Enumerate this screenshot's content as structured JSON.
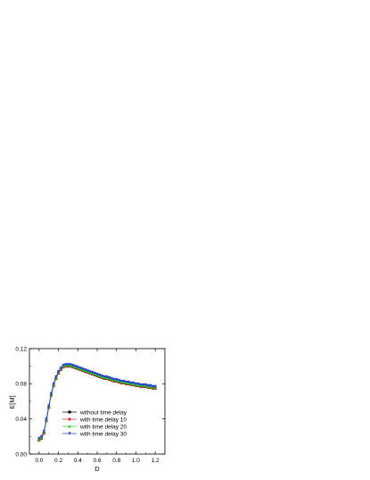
{
  "chart_data": {
    "type": "line",
    "title": "",
    "xlabel": "D",
    "ylabel": "E[M]",
    "xlim": [
      -0.1,
      1.3
    ],
    "ylim": [
      0.0,
      0.12
    ],
    "xticks": [
      "0.0",
      "0.2",
      "0.4",
      "0.6",
      "0.8",
      "1.0",
      "1.2"
    ],
    "xtick_values": [
      0.0,
      0.2,
      0.4,
      0.6,
      0.8,
      1.0,
      1.2
    ],
    "yticks": [
      "0.00",
      "0.04",
      "0.08",
      "0.12"
    ],
    "ytick_values": [
      0.0,
      0.04,
      0.08,
      0.12
    ],
    "grid": false,
    "legend_position": "center-left",
    "x": [
      0.0,
      0.025,
      0.05,
      0.075,
      0.1,
      0.125,
      0.15,
      0.175,
      0.2,
      0.225,
      0.25,
      0.275,
      0.3,
      0.325,
      0.35,
      0.375,
      0.4,
      0.425,
      0.45,
      0.475,
      0.5,
      0.525,
      0.55,
      0.575,
      0.6,
      0.625,
      0.65,
      0.675,
      0.7,
      0.725,
      0.75,
      0.775,
      0.8,
      0.825,
      0.85,
      0.875,
      0.9,
      0.925,
      0.95,
      0.975,
      1.0,
      1.025,
      1.05,
      1.075,
      1.1,
      1.125,
      1.15,
      1.175,
      1.2
    ],
    "series": [
      {
        "name": "without time delay",
        "color": "#000000",
        "marker": "square",
        "values": [
          0.016,
          0.018,
          0.024,
          0.038,
          0.053,
          0.067,
          0.078,
          0.086,
          0.092,
          0.096,
          0.099,
          0.1,
          0.1,
          0.1,
          0.099,
          0.098,
          0.097,
          0.096,
          0.095,
          0.094,
          0.093,
          0.092,
          0.091,
          0.09,
          0.089,
          0.088,
          0.087,
          0.086,
          0.086,
          0.085,
          0.084,
          0.083,
          0.083,
          0.082,
          0.081,
          0.081,
          0.08,
          0.08,
          0.079,
          0.079,
          0.078,
          0.078,
          0.077,
          0.077,
          0.077,
          0.076,
          0.076,
          0.075,
          0.075
        ]
      },
      {
        "name": "with time delay 10",
        "color": "#e41a1c",
        "marker": "circle",
        "values": [
          0.016,
          0.018,
          0.024,
          0.038,
          0.053,
          0.067,
          0.078,
          0.086,
          0.092,
          0.096,
          0.099,
          0.1,
          0.1,
          0.1,
          0.099,
          0.098,
          0.097,
          0.096,
          0.095,
          0.094,
          0.093,
          0.092,
          0.091,
          0.09,
          0.089,
          0.088,
          0.087,
          0.086,
          0.086,
          0.085,
          0.084,
          0.083,
          0.083,
          0.082,
          0.081,
          0.081,
          0.08,
          0.08,
          0.079,
          0.079,
          0.078,
          0.078,
          0.077,
          0.077,
          0.077,
          0.076,
          0.076,
          0.075,
          0.075
        ]
      },
      {
        "name": "with time delay 20",
        "color": "#22c922",
        "marker": "triangle",
        "values": [
          0.017,
          0.019,
          0.025,
          0.039,
          0.054,
          0.068,
          0.079,
          0.087,
          0.093,
          0.097,
          0.1,
          0.101,
          0.101,
          0.101,
          0.1,
          0.099,
          0.098,
          0.097,
          0.096,
          0.095,
          0.094,
          0.093,
          0.092,
          0.091,
          0.09,
          0.089,
          0.088,
          0.087,
          0.087,
          0.086,
          0.085,
          0.084,
          0.084,
          0.083,
          0.082,
          0.082,
          0.081,
          0.081,
          0.08,
          0.08,
          0.079,
          0.079,
          0.078,
          0.078,
          0.078,
          0.077,
          0.077,
          0.076,
          0.076
        ]
      },
      {
        "name": "with time delay 30",
        "color": "#1f3fd6",
        "marker": "triangle-down",
        "values": [
          0.018,
          0.02,
          0.026,
          0.04,
          0.055,
          0.069,
          0.08,
          0.088,
          0.094,
          0.098,
          0.101,
          0.102,
          0.102,
          0.102,
          0.101,
          0.1,
          0.099,
          0.098,
          0.097,
          0.096,
          0.095,
          0.094,
          0.093,
          0.092,
          0.091,
          0.09,
          0.089,
          0.088,
          0.088,
          0.087,
          0.086,
          0.085,
          0.085,
          0.084,
          0.083,
          0.083,
          0.082,
          0.082,
          0.081,
          0.081,
          0.08,
          0.08,
          0.079,
          0.079,
          0.079,
          0.078,
          0.078,
          0.077,
          0.077
        ]
      }
    ]
  }
}
